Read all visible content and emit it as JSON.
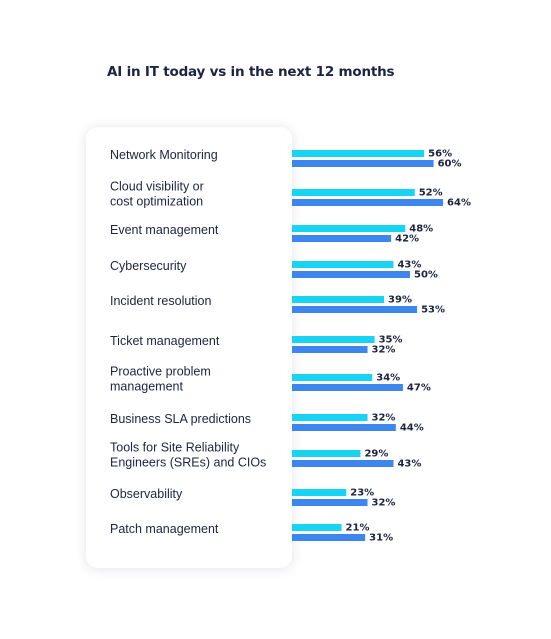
{
  "chart_data": {
    "type": "bar",
    "orientation": "horizontal",
    "title": "AI in IT today vs in the next 12 months",
    "categories": [
      "Network Monitoring",
      "Cloud visibility or\ncost optimization",
      "Event management",
      "Cybersecurity",
      "Incident resolution",
      "Ticket management",
      "Proactive problem\nmanagement",
      "Business SLA predictions",
      "Tools for Site Reliability\nEngineers (SREs) and CIOs",
      "Observability",
      "Patch management"
    ],
    "series": [
      {
        "values": [
          56,
          52,
          48,
          43,
          39,
          35,
          34,
          32,
          29,
          23,
          21
        ],
        "color": "#18d4f2"
      },
      {
        "values": [
          60,
          64,
          42,
          50,
          53,
          32,
          47,
          44,
          43,
          32,
          31
        ],
        "color": "#3d86ee"
      }
    ],
    "value_suffix": "%",
    "grid": false,
    "legend": "none"
  }
}
